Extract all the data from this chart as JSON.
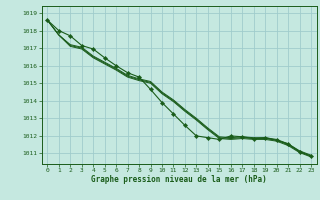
{
  "background_color": "#c5e8e0",
  "grid_color": "#a0cccc",
  "line_color": "#1a5c1a",
  "xlabel": "Graphe pression niveau de la mer (hPa)",
  "xlim": [
    -0.5,
    23.5
  ],
  "ylim": [
    1010.4,
    1019.4
  ],
  "yticks": [
    1011,
    1012,
    1013,
    1014,
    1015,
    1016,
    1017,
    1018,
    1019
  ],
  "xticks": [
    0,
    1,
    2,
    3,
    4,
    5,
    6,
    7,
    8,
    9,
    10,
    11,
    12,
    13,
    14,
    15,
    16,
    17,
    18,
    19,
    20,
    21,
    22,
    23
  ],
  "series_smooth": [
    [
      1018.6,
      1017.75,
      1017.2,
      1017.05,
      1016.55,
      1016.2,
      1015.85,
      1015.45,
      1015.25,
      1015.1,
      1014.5,
      1014.05,
      1013.5,
      1013.0,
      1012.45,
      1011.95,
      1011.9,
      1011.95,
      1011.9,
      1011.9,
      1011.8,
      1011.55,
      1011.15,
      1010.9
    ],
    [
      1018.6,
      1017.75,
      1017.15,
      1017.0,
      1016.5,
      1016.15,
      1015.8,
      1015.4,
      1015.2,
      1015.05,
      1014.45,
      1014.0,
      1013.45,
      1012.95,
      1012.4,
      1011.9,
      1011.85,
      1011.9,
      1011.85,
      1011.85,
      1011.75,
      1011.5,
      1011.1,
      1010.85
    ],
    [
      1018.6,
      1017.75,
      1017.1,
      1016.95,
      1016.45,
      1016.1,
      1015.75,
      1015.35,
      1015.15,
      1015.0,
      1014.4,
      1013.95,
      1013.4,
      1012.9,
      1012.35,
      1011.85,
      1011.8,
      1011.85,
      1011.8,
      1011.8,
      1011.7,
      1011.45,
      1011.05,
      1010.8
    ]
  ],
  "series_marker": [
    1018.6,
    1018.0,
    1017.7,
    1017.15,
    1016.95,
    1016.45,
    1016.0,
    1015.6,
    1015.35,
    1014.65,
    1013.9,
    1013.25,
    1012.6,
    1012.0,
    1011.9,
    1011.8,
    1012.0,
    1011.95,
    1011.85,
    1011.9,
    1011.75,
    1011.55,
    1011.1,
    1010.85
  ]
}
